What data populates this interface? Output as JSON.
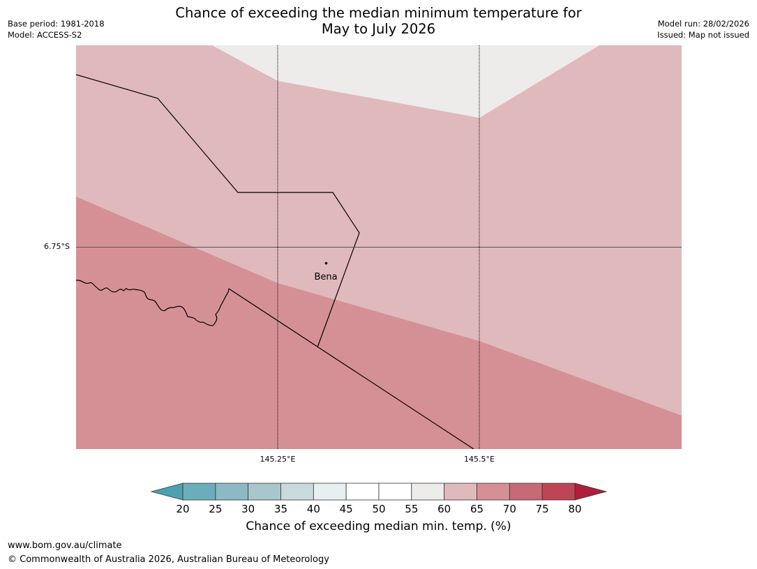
{
  "title": {
    "line1": "Chance of exceeding the median minimum temperature for",
    "line2": "May to July 2026"
  },
  "meta_left": {
    "base_period": "Base period: 1981-2018",
    "model": "Model: ACCESS-S2"
  },
  "meta_right": {
    "model_run": "Model run: 28/02/2026",
    "issued": "Issued: Map not issued"
  },
  "map": {
    "latitude_labels": [
      "6.75°S"
    ],
    "longitude_labels": [
      "145.25°E",
      "145.5°E"
    ],
    "place": {
      "name": "Bena"
    },
    "region_colors": {
      "55-60": "#eeecea",
      "60-65": "#e0b9bd",
      "65-70": "#d59096"
    }
  },
  "colorbar": {
    "title": "Chance of exceeding median min. temp. (%)",
    "ticks": [
      "20",
      "25",
      "30",
      "35",
      "40",
      "45",
      "50",
      "55",
      "60",
      "65",
      "70",
      "75",
      "80"
    ],
    "under_color": "#4fa0ae",
    "over_color": "#b01e38",
    "bin_colors": [
      "#6aaebb",
      "#8bb9c5",
      "#a8c7cd",
      "#c9dadd",
      "#e7eff1",
      "#ffffff",
      "#ffffff",
      "#eeecea",
      "#e0b9bd",
      "#d59096",
      "#c86a76",
      "#bd4555"
    ]
  },
  "footer": {
    "url": "www.bom.gov.au/climate",
    "copyright": "© Commonwealth of Australia 2026, Australian Bureau of Meteorology"
  }
}
